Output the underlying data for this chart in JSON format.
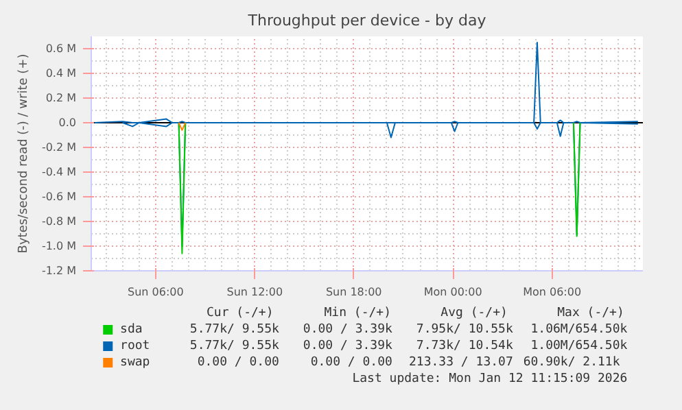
{
  "chart_data": {
    "type": "line",
    "title": "Throughput per device - by day",
    "ylabel": "Bytes/second read (-) / write (+)",
    "xlim": [
      "2026-01-11T02:06",
      "2026-01-12T11:30"
    ],
    "xticks": [
      {
        "value": "2026-01-11T06:00",
        "label": "Sun 06:00"
      },
      {
        "value": "2026-01-11T12:00",
        "label": "Sun 12:00"
      },
      {
        "value": "2026-01-11T18:00",
        "label": "Sun 18:00"
      },
      {
        "value": "2026-01-12T00:00",
        "label": "Mon 00:00"
      },
      {
        "value": "2026-01-12T06:00",
        "label": "Mon 06:00"
      }
    ],
    "ylim": [
      -1.2,
      0.7
    ],
    "yticks": [
      {
        "value": -1.2,
        "label": "-1.2 M"
      },
      {
        "value": -1.0,
        "label": "-1.0 M"
      },
      {
        "value": -0.8,
        "label": "-0.8 M"
      },
      {
        "value": -0.6,
        "label": "-0.6 M"
      },
      {
        "value": -0.4,
        "label": "-0.4 M"
      },
      {
        "value": -0.2,
        "label": "-0.2 M"
      },
      {
        "value": 0,
        "label": "0.0"
      },
      {
        "value": 0.2,
        "label": "0.2 M"
      },
      {
        "value": 0.4,
        "label": "0.4 M"
      },
      {
        "value": 0.6,
        "label": "0.6 M"
      }
    ],
    "grid": true,
    "legend": "bottom",
    "line_style": "solid",
    "ref_lines": [
      {
        "axis": "y",
        "value": 0,
        "color": "#000000"
      }
    ],
    "series": [
      {
        "name": "root",
        "color": "#0066b3",
        "x": [
          "2026-01-11T02:18",
          "2026-01-11T04:00",
          "2026-01-11T04:36",
          "2026-01-11T05:00",
          "2026-01-11T06:39",
          "2026-01-11T07:00",
          "2026-01-11T07:24",
          "2026-01-11T07:36",
          "2026-01-11T07:48",
          "2026-01-11T10:00",
          "2026-01-11T15:00",
          "2026-01-11T20:00",
          "2026-01-11T20:15",
          "2026-01-11T20:30",
          "2026-01-11T23:54",
          "2026-01-12T00:06",
          "2026-01-12T00:18",
          "2026-01-12T04:54",
          "2026-01-12T05:06",
          "2026-01-12T05:18",
          "2026-01-12T06:18",
          "2026-01-12T06:30",
          "2026-01-12T06:42",
          "2026-01-12T07:18",
          "2026-01-12T07:30",
          "2026-01-12T07:42",
          "2026-01-12T11:12"
        ],
        "values": [
          0,
          0.01,
          0,
          0,
          0.03,
          0,
          0,
          0.01,
          0,
          0,
          0,
          0,
          0,
          0,
          0,
          0.01,
          0,
          0,
          0.65,
          0,
          0,
          0.02,
          0,
          0,
          0.01,
          0,
          0.01
        ]
      },
      {
        "color": "#0066b3",
        "x": [
          "2026-01-11T04:00",
          "2026-01-11T04:36",
          "2026-01-11T05:00",
          "2026-01-11T06:39",
          "2026-01-11T07:00",
          "2026-01-11T07:24",
          "2026-01-11T07:36",
          "2026-01-11T07:48",
          "2026-01-11T20:00",
          "2026-01-11T20:15",
          "2026-01-11T20:30",
          "2026-01-11T23:54",
          "2026-01-12T00:06",
          "2026-01-12T00:18",
          "2026-01-12T04:54",
          "2026-01-12T05:06",
          "2026-01-12T05:18",
          "2026-01-12T06:18",
          "2026-01-12T06:30",
          "2026-01-12T06:42",
          "2026-01-12T07:18",
          "2026-01-12T07:30",
          "2026-01-12T07:42",
          "2026-01-12T11:12"
        ],
        "values": [
          0,
          -0.03,
          0,
          -0.03,
          0,
          0,
          -1.0,
          0,
          0,
          -0.12,
          0,
          0,
          -0.07,
          0,
          0,
          -0.05,
          0,
          0,
          -0.11,
          0,
          0,
          -0.91,
          0,
          -0.01
        ]
      },
      {
        "name": "sda",
        "color": "#00cc00",
        "x": [
          "2026-01-11T07:24",
          "2026-01-11T07:36",
          "2026-01-11T07:48",
          "2026-01-11T19:00",
          "2026-01-12T07:18",
          "2026-01-12T07:30",
          "2026-01-12T07:42"
        ],
        "values": [
          0,
          -1.06,
          0,
          null,
          0,
          -0.92,
          0
        ]
      },
      {
        "name": "swap",
        "color": "#ff8000",
        "x": [
          "2026-01-11T07:24",
          "2026-01-11T07:36",
          "2026-01-11T07:48"
        ],
        "values": [
          0,
          -0.06,
          0
        ]
      }
    ],
    "annotations": [
      "Cur (-/+)",
      "Min (-/+)",
      "Avg (-/+)",
      "Max (-/+)",
      "5.77k/  9.55k",
      "0.00 /  3.39k",
      "7.95k/ 10.55k",
      "1.06M/654.50k",
      "5.77k/  9.55k",
      "0.00 /  3.39k",
      "7.73k/ 10.54k",
      "1.00M/654.50k",
      "0.00 /  0.00",
      "0.00 /  0.00",
      "213.33 / 13.07",
      "60.90k/  2.11k",
      "Last update: Mon Jan 12 11:15:09 2026"
    ]
  }
}
